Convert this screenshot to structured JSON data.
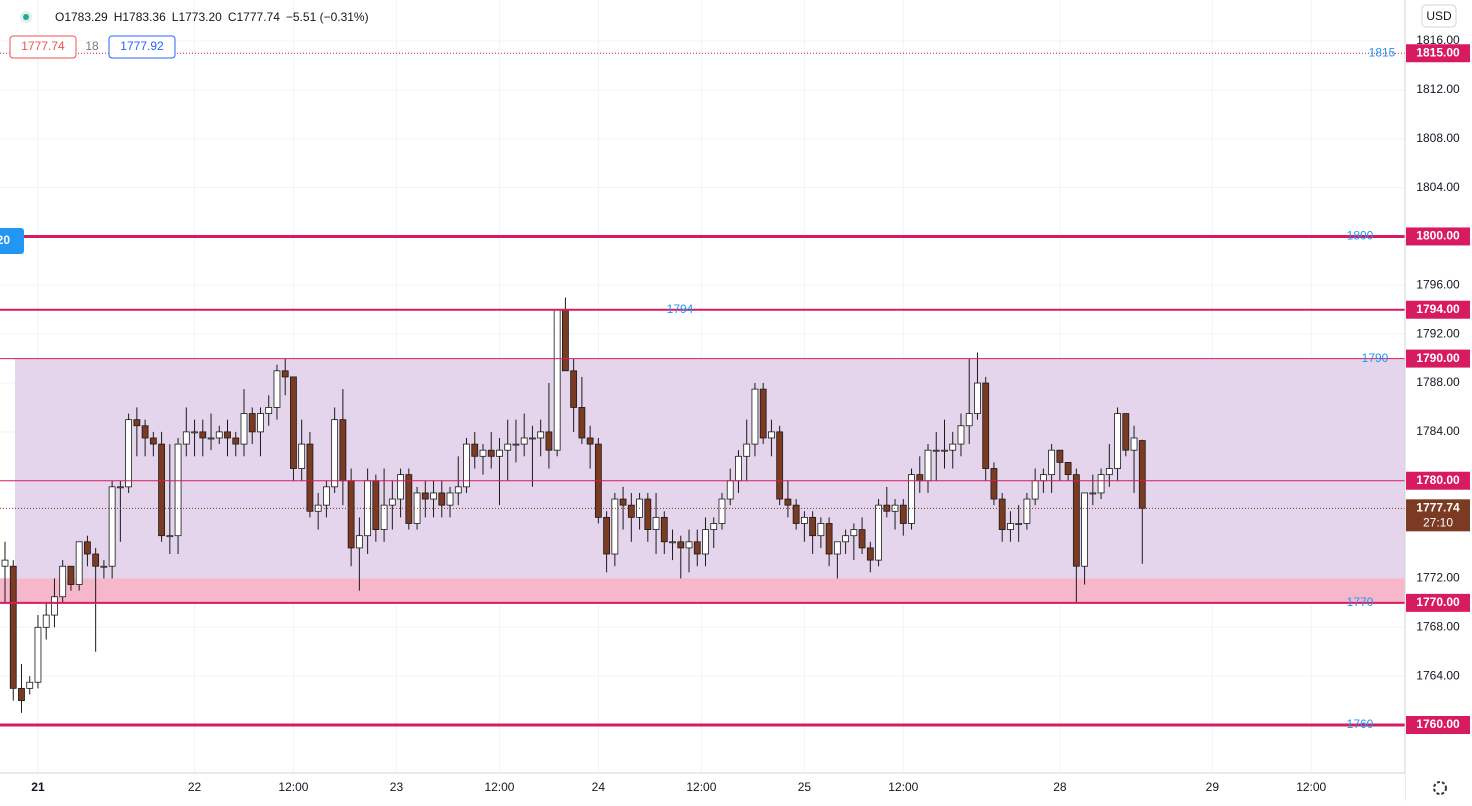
{
  "chart_data": {
    "type": "candlestick",
    "ohlc_readout": [
      "O1783.29",
      "H1783.36",
      "L1773.20",
      "C1777.74",
      "−5.51 (−0.31%)"
    ],
    "bid": "1777.74",
    "spread": "18",
    "ask": "1777.92",
    "currency": "USD",
    "left_tag": "20",
    "up_color": "#ffffff",
    "down_color": "#7b3a22",
    "outline_color": "#1a1a1a",
    "level_color": "#d81b60",
    "text_color": "#2196f3",
    "zone_color": "#e5d5ec",
    "band_color": "#f6b7cb",
    "zone": [
      1770,
      1790
    ],
    "band": [
      1770,
      1772
    ],
    "ylim": [
      1756.07,
      1819.36
    ],
    "yticks": [
      {
        "value": 1816,
        "label": "1816.00"
      },
      {
        "value": 1812,
        "label": "1812.00"
      },
      {
        "value": 1808,
        "label": "1808.00"
      },
      {
        "value": 1804,
        "label": "1804.00"
      },
      {
        "value": 1796,
        "label": "1796.00"
      },
      {
        "value": 1792,
        "label": "1792.00"
      },
      {
        "value": 1788,
        "label": "1788.00"
      },
      {
        "value": 1784,
        "label": "1784.00"
      },
      {
        "value": 1772,
        "label": "1772.00"
      },
      {
        "value": 1768,
        "label": "1768.00"
      },
      {
        "value": 1764,
        "label": "1764.00"
      }
    ],
    "xlim": [
      0,
      170
    ],
    "xticks": [
      {
        "value": 4,
        "label": "21"
      },
      {
        "value": 23,
        "label": "22"
      },
      {
        "value": 35,
        "label": "12:00"
      },
      {
        "value": 47.5,
        "label": "23"
      },
      {
        "value": 60,
        "label": "12:00"
      },
      {
        "value": 72,
        "label": "24"
      },
      {
        "value": 84.5,
        "label": "12:00"
      },
      {
        "value": 97,
        "label": "25"
      },
      {
        "value": 109,
        "label": "12:00"
      },
      {
        "value": 128,
        "label": "28"
      },
      {
        "value": 146.5,
        "label": "29"
      },
      {
        "value": 158.5,
        "label": "12:00"
      }
    ],
    "levels": [
      {
        "value": 1815,
        "label": "1815.00",
        "text": "1815",
        "width": 1,
        "dotted": true
      },
      {
        "value": 1800,
        "label": "1800.00",
        "text": "1800",
        "width": 3
      },
      {
        "value": 1794,
        "label": "1794.00",
        "text": "1794",
        "width": 2
      },
      {
        "value": 1790,
        "label": "1790.00",
        "text": "1790",
        "width": 1
      },
      {
        "value": 1780,
        "label": "1780.00",
        "width": 1
      },
      {
        "value": 1770,
        "label": "1770.00",
        "text": "1770",
        "width": 2
      },
      {
        "value": 1760,
        "label": "1760.00",
        "text": "1760",
        "width": 3
      }
    ],
    "last": {
      "value": 1777.74,
      "label": "1777.74",
      "countdown": "27:10"
    },
    "x": [
      0,
      1,
      2,
      3,
      4,
      5,
      6,
      7,
      8,
      9,
      10,
      11,
      12,
      13,
      14,
      15,
      16,
      17,
      18,
      19,
      20,
      21,
      22,
      23,
      24,
      25,
      26,
      27,
      28,
      29,
      30,
      31,
      32,
      33,
      34,
      35,
      36,
      37,
      38,
      39,
      40,
      41,
      42,
      43,
      44,
      45,
      46,
      47,
      48,
      49,
      50,
      51,
      52,
      53,
      54,
      55,
      56,
      57,
      58,
      59,
      60,
      61,
      62,
      63,
      64,
      65,
      66,
      67,
      68,
      69,
      70,
      71,
      72,
      73,
      74,
      75,
      76,
      77,
      78,
      79,
      80,
      81,
      82,
      83,
      84,
      85,
      86,
      87,
      88,
      89,
      90,
      91,
      92,
      93,
      94,
      95,
      96,
      97,
      98,
      99,
      100,
      101,
      102,
      103,
      104,
      105,
      106,
      107,
      108,
      109,
      110,
      111,
      112,
      113,
      114,
      115,
      116,
      117,
      118,
      119,
      120,
      121,
      122,
      123,
      124,
      125,
      126,
      127,
      128,
      129,
      130,
      131,
      132,
      133,
      134,
      135,
      136,
      137,
      138
    ],
    "ohlc": [
      [
        1773,
        1775,
        1770,
        1773.5
      ],
      [
        1773,
        1773.5,
        1762,
        1763
      ],
      [
        1763,
        1765,
        1761,
        1762
      ],
      [
        1763,
        1764,
        1762.5,
        1763.5
      ],
      [
        1763.5,
        1769,
        1763,
        1768
      ],
      [
        1768,
        1770,
        1767,
        1769
      ],
      [
        1769,
        1772,
        1768,
        1770.5
      ],
      [
        1770.5,
        1773.5,
        1770,
        1773
      ],
      [
        1773,
        1773,
        1771,
        1771.5
      ],
      [
        1771.5,
        1775,
        1771,
        1775
      ],
      [
        1775,
        1775.5,
        1773,
        1774
      ],
      [
        1774,
        1774.5,
        1766,
        1773
      ],
      [
        1773,
        1773.5,
        1772,
        1773
      ],
      [
        1773,
        1780,
        1772,
        1779.5
      ],
      [
        1779.5,
        1780,
        1775,
        1779.5
      ],
      [
        1779.5,
        1785.5,
        1779,
        1785
      ],
      [
        1785,
        1786,
        1782,
        1784.5
      ],
      [
        1784.5,
        1785,
        1782,
        1783.5
      ],
      [
        1783.5,
        1784,
        1782,
        1783
      ],
      [
        1783,
        1784,
        1775,
        1775.5
      ],
      [
        1775.5,
        1783,
        1774,
        1775.5
      ],
      [
        1775.5,
        1783.5,
        1774,
        1783
      ],
      [
        1783,
        1786,
        1782,
        1784
      ],
      [
        1784,
        1785,
        1782,
        1784
      ],
      [
        1784,
        1785,
        1782,
        1783.5
      ],
      [
        1783.5,
        1785.5,
        1782.5,
        1783.5
      ],
      [
        1783.5,
        1784.5,
        1783,
        1784
      ],
      [
        1784,
        1785,
        1782,
        1783.5
      ],
      [
        1783.5,
        1784,
        1782,
        1783
      ],
      [
        1783,
        1787.5,
        1782,
        1785.5
      ],
      [
        1785.5,
        1786,
        1783,
        1784
      ],
      [
        1784,
        1786,
        1782,
        1785.5
      ],
      [
        1785.5,
        1787,
        1784.5,
        1786
      ],
      [
        1786,
        1789.5,
        1785,
        1789
      ],
      [
        1789,
        1790,
        1787,
        1788.5
      ],
      [
        1788.5,
        1788.5,
        1780,
        1781
      ],
      [
        1781,
        1785,
        1780,
        1783
      ],
      [
        1783,
        1784,
        1777,
        1777.5
      ],
      [
        1777.5,
        1779,
        1776,
        1778
      ],
      [
        1778,
        1780,
        1777,
        1779.5
      ],
      [
        1779.5,
        1786,
        1779,
        1785
      ],
      [
        1785,
        1787.5,
        1778,
        1780
      ],
      [
        1780,
        1781,
        1773,
        1774.5
      ],
      [
        1774.5,
        1777,
        1771,
        1775.5
      ],
      [
        1775.5,
        1781,
        1774,
        1780
      ],
      [
        1780,
        1780.5,
        1775,
        1776
      ],
      [
        1776,
        1781,
        1775,
        1778
      ],
      [
        1778,
        1780,
        1776,
        1778.5
      ],
      [
        1778.5,
        1781,
        1777,
        1780.5
      ],
      [
        1780.5,
        1781,
        1776,
        1776.5
      ],
      [
        1776.5,
        1779.5,
        1776,
        1779
      ],
      [
        1779,
        1780,
        1777,
        1778.5
      ],
      [
        1778.5,
        1780,
        1777,
        1779
      ],
      [
        1779,
        1780,
        1777,
        1778
      ],
      [
        1778,
        1779.5,
        1777,
        1779
      ],
      [
        1779,
        1782,
        1778,
        1779.5
      ],
      [
        1779.5,
        1783.5,
        1779,
        1783
      ],
      [
        1783,
        1784,
        1781,
        1782
      ],
      [
        1782,
        1783,
        1780.5,
        1782.5
      ],
      [
        1782.5,
        1784,
        1781,
        1782
      ],
      [
        1782,
        1783.5,
        1778,
        1782.5
      ],
      [
        1782.5,
        1785,
        1780,
        1783
      ],
      [
        1783,
        1785,
        1781.5,
        1783
      ],
      [
        1783,
        1785.5,
        1782,
        1783.5
      ],
      [
        1783.5,
        1784.5,
        1779.5,
        1783.5
      ],
      [
        1783.5,
        1785,
        1782,
        1784
      ],
      [
        1784,
        1788,
        1781,
        1782.5
      ],
      [
        1782.5,
        1794,
        1782,
        1794
      ],
      [
        1794,
        1795,
        1789,
        1789
      ],
      [
        1789,
        1790,
        1784,
        1786
      ],
      [
        1786,
        1788.5,
        1783,
        1783.5
      ],
      [
        1783.5,
        1784.5,
        1781,
        1783
      ],
      [
        1783,
        1783.5,
        1776.5,
        1777
      ],
      [
        1777,
        1777.5,
        1772.5,
        1774
      ],
      [
        1774,
        1779,
        1773,
        1778.5
      ],
      [
        1778.5,
        1779.5,
        1776,
        1778
      ],
      [
        1778,
        1779,
        1775,
        1777
      ],
      [
        1777,
        1779,
        1776,
        1778.5
      ],
      [
        1778.5,
        1779,
        1775,
        1776
      ],
      [
        1776,
        1779,
        1774,
        1777
      ],
      [
        1777,
        1777.5,
        1774,
        1775
      ],
      [
        1775,
        1776,
        1773.5,
        1775
      ],
      [
        1775,
        1775.5,
        1772,
        1774.5
      ],
      [
        1774.5,
        1776,
        1772.5,
        1775
      ],
      [
        1775,
        1776,
        1773,
        1774
      ],
      [
        1774,
        1777,
        1773,
        1776
      ],
      [
        1776,
        1777,
        1774.5,
        1776.5
      ],
      [
        1776.5,
        1779,
        1776,
        1778.5
      ],
      [
        1778.5,
        1781,
        1778,
        1780
      ],
      [
        1780,
        1782.5,
        1779,
        1782
      ],
      [
        1782,
        1785,
        1780,
        1783
      ],
      [
        1783,
        1788,
        1782,
        1787.5
      ],
      [
        1787.5,
        1788,
        1783,
        1783.5
      ],
      [
        1783.5,
        1785,
        1782,
        1784
      ],
      [
        1784,
        1784.5,
        1778,
        1778.5
      ],
      [
        1778.5,
        1780,
        1777,
        1778
      ],
      [
        1778,
        1778.5,
        1776,
        1776.5
      ],
      [
        1776.5,
        1777.5,
        1775,
        1777
      ],
      [
        1777,
        1777.5,
        1774,
        1775.5
      ],
      [
        1775.5,
        1777,
        1774.5,
        1776.5
      ],
      [
        1776.5,
        1777,
        1773,
        1774
      ],
      [
        1774,
        1775,
        1772,
        1775
      ],
      [
        1775,
        1776,
        1774,
        1775.5
      ],
      [
        1775.5,
        1776.5,
        1773.5,
        1776
      ],
      [
        1776,
        1777,
        1774,
        1774.5
      ],
      [
        1774.5,
        1775,
        1772.5,
        1773.5
      ],
      [
        1773.5,
        1778.5,
        1773,
        1778
      ],
      [
        1778,
        1779.5,
        1777,
        1777.5
      ],
      [
        1777.5,
        1778.5,
        1776,
        1778
      ],
      [
        1778,
        1778.5,
        1775.5,
        1776.5
      ],
      [
        1776.5,
        1781,
        1776,
        1780.5
      ],
      [
        1780.5,
        1782,
        1779,
        1780
      ],
      [
        1780,
        1783,
        1779,
        1782.5
      ],
      [
        1782.5,
        1784,
        1780,
        1782.5
      ],
      [
        1782.5,
        1785,
        1781,
        1782.5
      ],
      [
        1782.5,
        1784,
        1781,
        1783
      ],
      [
        1783,
        1785.5,
        1782,
        1784.5
      ],
      [
        1784.5,
        1790,
        1783,
        1785.5
      ],
      [
        1785.5,
        1790.5,
        1785,
        1788
      ],
      [
        1788,
        1788.5,
        1780,
        1781
      ],
      [
        1781,
        1781.5,
        1778,
        1778.5
      ],
      [
        1778.5,
        1779,
        1775,
        1776
      ],
      [
        1776,
        1777.5,
        1775,
        1776.5
      ],
      [
        1776.5,
        1778,
        1775,
        1776.5
      ],
      [
        1776.5,
        1779,
        1776,
        1778.5
      ],
      [
        1778.5,
        1781,
        1778,
        1780
      ],
      [
        1780,
        1781,
        1779,
        1780.5
      ],
      [
        1780.5,
        1783,
        1779,
        1782.5
      ],
      [
        1782.5,
        1782.5,
        1780,
        1781.5
      ],
      [
        1781.5,
        1781.5,
        1780,
        1780.5
      ],
      [
        1780.5,
        1781,
        1770,
        1773
      ],
      [
        1773,
        1779,
        1771.5,
        1779
      ],
      [
        1779,
        1780.5,
        1778,
        1779
      ],
      [
        1779,
        1781,
        1778.5,
        1780.5
      ],
      [
        1780.5,
        1783,
        1779.5,
        1781
      ],
      [
        1781,
        1786,
        1780,
        1785.5
      ],
      [
        1785.5,
        1785.5,
        1782,
        1782.5
      ],
      [
        1782.5,
        1784.5,
        1779,
        1783.5
      ],
      [
        1783.29,
        1783.36,
        1773.2,
        1777.74
      ]
    ]
  }
}
